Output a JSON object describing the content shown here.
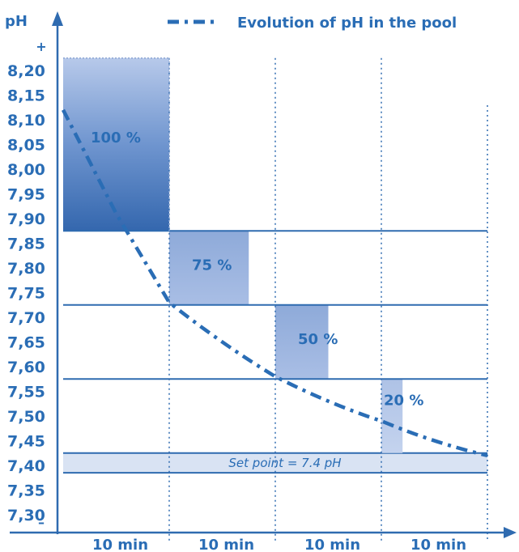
{
  "chart_data": {
    "type": "bar",
    "title": "Evolution of pH in the pool",
    "ylabel": "pH",
    "y_plus": "+",
    "y_minus": "–",
    "y_ticks": [
      "8,20",
      "8,15",
      "8,10",
      "8,05",
      "8,00",
      "7,95",
      "7,90",
      "7,85",
      "7,80",
      "7,75",
      "7,70",
      "7,65",
      "7,60",
      "7,55",
      "7,50",
      "7,45",
      "7,40",
      "7,35",
      "7,30"
    ],
    "ylim": [
      7.25,
      8.25
    ],
    "categories": [
      "10 min",
      "10 min",
      "10 min",
      "10 min"
    ],
    "dosing_bars": [
      {
        "label": "100 %",
        "percent": 100,
        "ph_from": 7.875,
        "ph_to": 8.225
      },
      {
        "label": "75 %",
        "percent": 75,
        "ph_from": 7.725,
        "ph_to": 7.875
      },
      {
        "label": "50 %",
        "percent": 50,
        "ph_from": 7.575,
        "ph_to": 7.725
      },
      {
        "label": "20 %",
        "percent": 20,
        "ph_from": 7.425,
        "ph_to": 7.575
      }
    ],
    "series": [
      {
        "name": "Evolution of pH in the pool",
        "x": [
          0,
          0.5,
          1,
          2,
          3,
          4
        ],
        "values": [
          8.12,
          7.91,
          7.73,
          7.58,
          7.49,
          7.42
        ]
      }
    ],
    "set_point": {
      "label": "Set point = 7.4 pH",
      "value": 7.4,
      "band": [
        7.385,
        7.425
      ]
    },
    "thresholds": [
      7.875,
      7.725,
      7.575
    ],
    "colors": {
      "line": "#2a6db5",
      "grid": "#2f6bb0",
      "bar_dark": "#3d74b8",
      "bar_mid": "#8aa9d8",
      "bar_light": "#b3c5e6",
      "band": "#d9e3f3",
      "label": "#2a6db5"
    }
  }
}
